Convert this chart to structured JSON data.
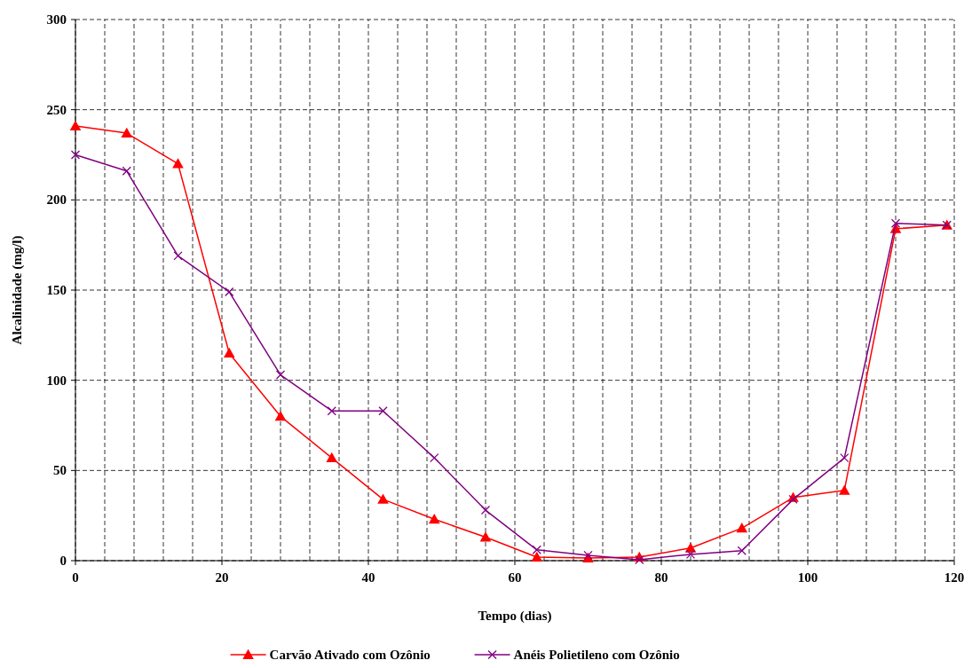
{
  "chart_data": {
    "type": "line",
    "xlabel": "Tempo (dias)",
    "ylabel": "Alcalinidade (mg/l)",
    "x": [
      0,
      7,
      14,
      21,
      28,
      35,
      42,
      49,
      56,
      63,
      70,
      77,
      84,
      91,
      98,
      105,
      112,
      119
    ],
    "series": [
      {
        "name": "Carvão Ativado com Ozônio",
        "color": "#ff0000",
        "marker": "triangle",
        "values": [
          241,
          237,
          220,
          115,
          80,
          57,
          34,
          23,
          13,
          2,
          1.5,
          2,
          7,
          18,
          35,
          39,
          184,
          186
        ]
      },
      {
        "name": "Anéis Polietileno com Ozônio",
        "color": "#800080",
        "marker": "cross",
        "values": [
          225,
          216,
          169,
          149,
          103,
          83,
          83,
          57,
          28,
          6,
          3,
          0.5,
          3.5,
          5.5,
          34,
          57,
          187,
          186
        ]
      }
    ],
    "xlim": [
      0,
      120
    ],
    "xticks": [
      0,
      {
        "value": 4,
        "label": null
      },
      {
        "value": 8,
        "label": null
      },
      {
        "value": 12,
        "label": null
      },
      {
        "value": 16,
        "label": null
      },
      20,
      {
        "value": 24,
        "label": null
      },
      {
        "value": 28,
        "label": null
      },
      {
        "value": 32,
        "label": null
      },
      {
        "value": 36,
        "label": null
      },
      40,
      {
        "value": 44,
        "label": null
      },
      {
        "value": 48,
        "label": null
      },
      {
        "value": 52,
        "label": null
      },
      {
        "value": 56,
        "label": null
      },
      60,
      {
        "value": 64,
        "label": null
      },
      {
        "value": 68,
        "label": null
      },
      {
        "value": 72,
        "label": null
      },
      {
        "value": 76,
        "label": null
      },
      80,
      {
        "value": 84,
        "label": null
      },
      {
        "value": 88,
        "label": null
      },
      {
        "value": 92,
        "label": null
      },
      {
        "value": 96,
        "label": null
      },
      100,
      {
        "value": 104,
        "label": null
      },
      {
        "value": 108,
        "label": null
      },
      {
        "value": 112,
        "label": null
      },
      {
        "value": 116,
        "label": null
      },
      120
    ],
    "ylim": [
      0,
      300
    ],
    "yticks": [
      0,
      50,
      100,
      150,
      200,
      250,
      300
    ],
    "grid": true,
    "legend": "bottom",
    "line_style": "solid"
  }
}
